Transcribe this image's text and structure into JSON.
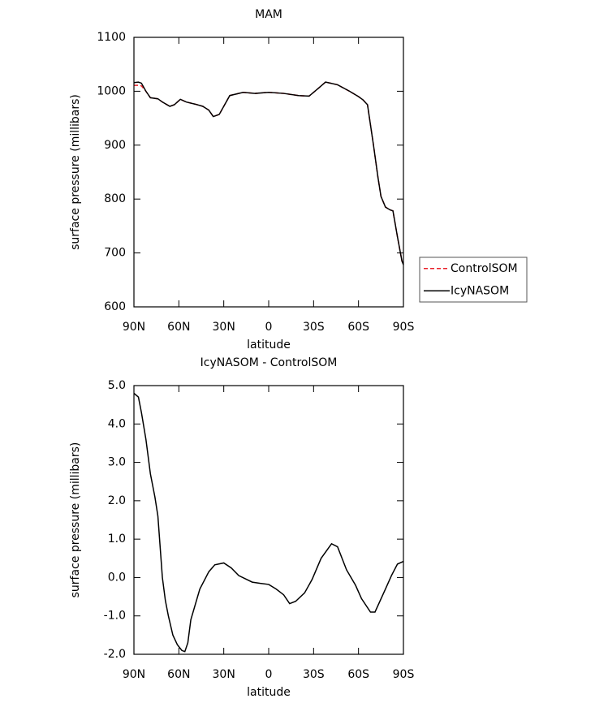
{
  "chart_data": [
    {
      "type": "line",
      "title": "MAM",
      "x_label": "latitude",
      "y_label": "surface pressure (millibars)",
      "x": [
        90,
        87,
        85,
        82,
        79,
        74,
        71,
        66,
        63,
        59,
        55,
        49,
        44,
        40,
        37,
        33,
        26,
        17,
        9,
        0,
        -10,
        -20,
        -27,
        -33,
        -38,
        -46,
        -54,
        -60,
        -63,
        -66,
        -70,
        -73,
        -75,
        -78,
        -81,
        -83,
        -86,
        -89,
        -90
      ],
      "series": [
        {
          "name": "ControlSOM",
          "color": "#e8202a",
          "line_style": "dashed",
          "values": [
            1011,
            1011,
            1010,
            1000,
            988,
            986,
            980,
            972,
            975,
            985,
            980,
            976,
            972,
            965,
            953,
            957,
            992,
            998,
            996,
            998,
            996,
            992,
            991,
            1005,
            1017,
            1012,
            1000,
            990,
            984,
            975,
            900,
            840,
            805,
            785,
            780,
            778,
            730,
            685,
            678
          ]
        },
        {
          "name": "IcyNASOM",
          "color": "#000000",
          "line_style": "solid",
          "values": [
            1016,
            1017,
            1015,
            1000,
            988,
            986,
            980,
            972,
            975,
            985,
            980,
            976,
            972,
            965,
            953,
            957,
            992,
            998,
            996,
            998,
            996,
            992,
            991,
            1005,
            1017,
            1012,
            1000,
            990,
            984,
            975,
            900,
            840,
            805,
            785,
            780,
            778,
            730,
            685,
            678
          ]
        }
      ],
      "xlim": [
        90,
        -90
      ],
      "xticks": [
        {
          "value": 90,
          "label": "90N"
        },
        {
          "value": 60,
          "label": "60N"
        },
        {
          "value": 30,
          "label": "30N"
        },
        0,
        {
          "value": -30,
          "label": "30S"
        },
        {
          "value": -60,
          "label": "60S"
        },
        {
          "value": -90,
          "label": "90S"
        }
      ],
      "ylim": [
        600,
        1100
      ],
      "yticks": [
        600,
        700,
        800,
        900,
        1000,
        1100
      ],
      "legend": "right"
    },
    {
      "type": "line",
      "title": "IcyNASOM - ControlSOM",
      "x_label": "latitude",
      "y_label": "surface pressure (millibars)",
      "x": [
        90,
        87,
        85,
        82,
        79,
        76,
        74,
        71,
        69,
        67,
        64,
        61,
        58,
        56,
        54,
        52,
        46,
        40,
        36,
        30,
        25,
        20,
        11,
        6,
        0,
        -5,
        -10,
        -14,
        -18,
        -24,
        -29,
        -35,
        -42,
        -46,
        -52,
        -58,
        -62,
        -68,
        -71,
        -78,
        -82,
        -86,
        -90
      ],
      "series": [
        {
          "color": "#000000",
          "line_style": "solid",
          "values": [
            4.8,
            4.7,
            4.3,
            3.6,
            2.7,
            2.1,
            1.6,
            0.0,
            -0.6,
            -1.0,
            -1.5,
            -1.75,
            -1.9,
            -1.93,
            -1.7,
            -1.1,
            -0.3,
            0.15,
            0.33,
            0.38,
            0.25,
            0.05,
            -0.12,
            -0.15,
            -0.18,
            -0.3,
            -0.45,
            -0.68,
            -0.62,
            -0.4,
            -0.05,
            0.5,
            0.88,
            0.8,
            0.2,
            -0.2,
            -0.55,
            -0.9,
            -0.9,
            -0.3,
            0.05,
            0.35,
            0.42
          ]
        }
      ],
      "xlim": [
        90,
        -90
      ],
      "xticks": [
        {
          "value": 90,
          "label": "90N"
        },
        {
          "value": 60,
          "label": "60N"
        },
        {
          "value": 30,
          "label": "30N"
        },
        0,
        {
          "value": -30,
          "label": "30S"
        },
        {
          "value": -60,
          "label": "60S"
        },
        {
          "value": -90,
          "label": "90S"
        }
      ],
      "ylim": [
        -2,
        5
      ],
      "yticks": [
        {
          "value": -2,
          "label": "-2.0"
        },
        {
          "value": -1,
          "label": "-1.0"
        },
        {
          "value": 0,
          "label": "0.0"
        },
        {
          "value": 1,
          "label": "1.0"
        },
        {
          "value": 2,
          "label": "2.0"
        },
        {
          "value": 3,
          "label": "3.0"
        },
        {
          "value": 4,
          "label": "4.0"
        },
        {
          "value": 5,
          "label": "5.0"
        }
      ]
    }
  ]
}
